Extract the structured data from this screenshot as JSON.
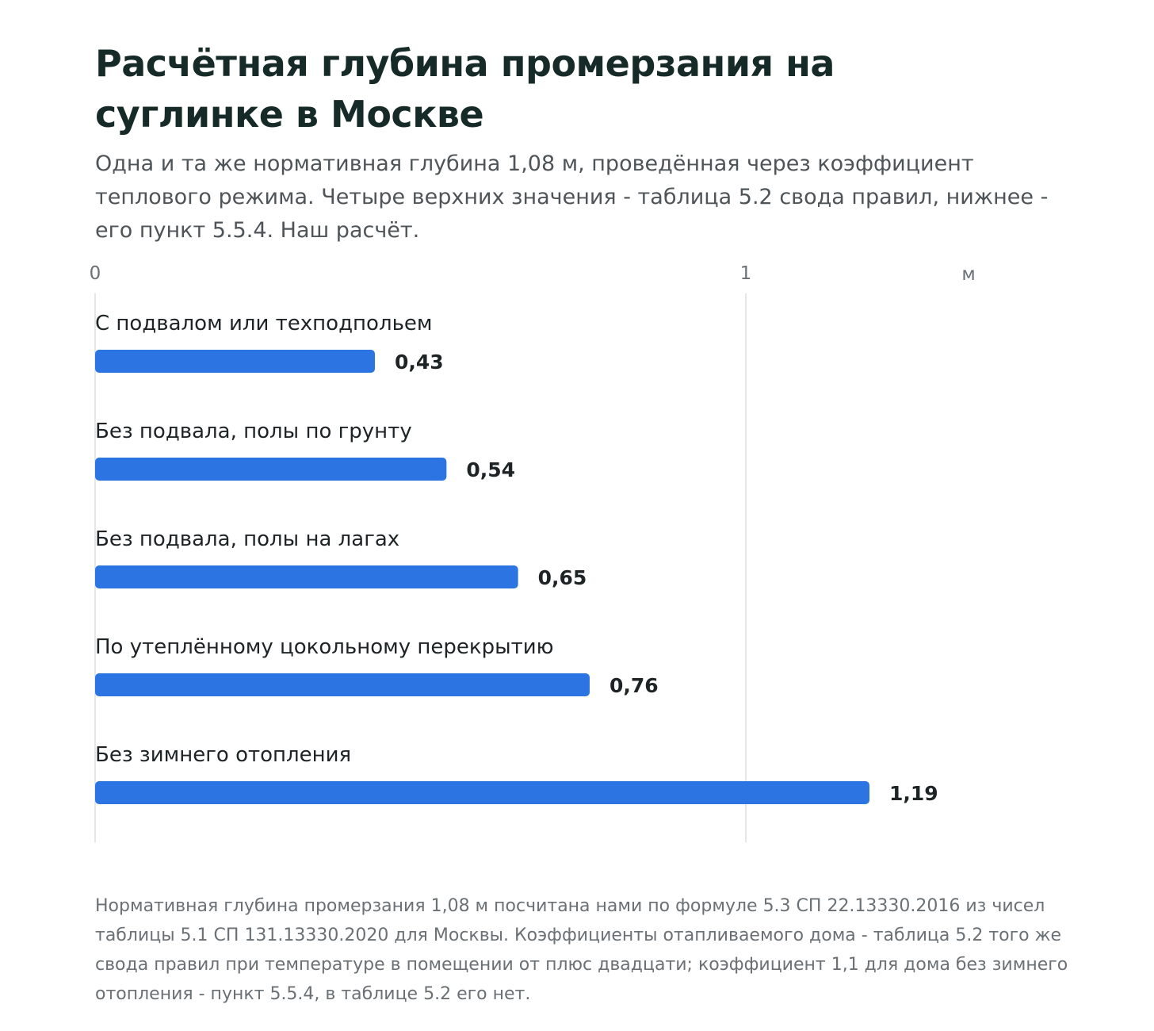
{
  "title": "Расчётная глубина промерзания на суглинке в Москве",
  "subtitle": "Одна и та же нормативная глубина 1,08 м, проведённая через коэффициент теплового режима. Четыре верхних значения - таблица 5.2 свода правил, нижнее - его пункт 5.5.4. Наш расчёт.",
  "footnote": "Нормативная глубина промерзания 1,08 м посчитана нами по формуле 5.3 СП 22.13330.2016 из чисел таблицы 5.1 СП 131.13330.2020 для Москвы. Коэффициенты отапливаемого дома - таблица 5.2 того же свода правил при температуре в помещении от плюс двадцати; коэффициент 1,1 для дома без зимнего отопления - пункт 5.5.4, в таблице 5.2 его нет.",
  "chart_data": {
    "type": "bar",
    "orientation": "horizontal",
    "categories": [
      "С подвалом или техподпольем",
      "Без подвала, полы по грунту",
      "Без подвала, полы на лагах",
      "По утеплённому цокольному перекрытию",
      "Без зимнего отопления"
    ],
    "values": [
      0.43,
      0.54,
      0.65,
      0.76,
      1.19
    ],
    "value_labels": [
      "0,43",
      "0,54",
      "0,65",
      "0,76",
      "1,19"
    ],
    "xlim": [
      0,
      1.34
    ],
    "x_ticks": [
      {
        "value": 0,
        "label": "0"
      },
      {
        "value": 1,
        "label": "1"
      }
    ],
    "unit_label": "м",
    "grid": true,
    "bar_color": "#2b74e2",
    "gridline_color": "#e6e6e6"
  }
}
